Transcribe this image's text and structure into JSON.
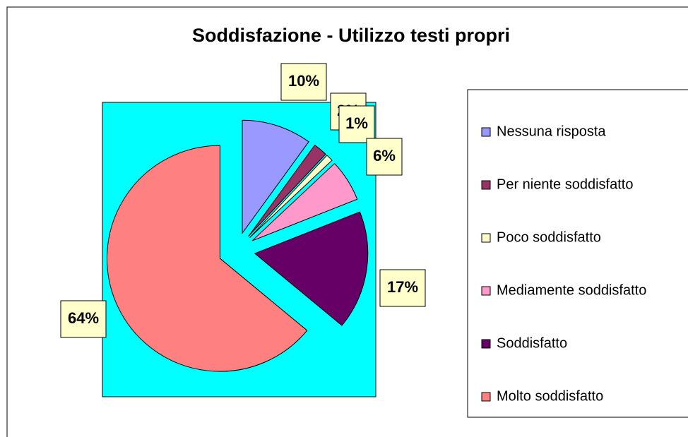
{
  "chart_data": {
    "type": "pie",
    "title": "Soddisfazione - Utilizzo testi propri",
    "categories": [
      "Nessuna risposta",
      "Per niente soddisfatto",
      "Poco soddisfatto",
      "Mediamente soddisfatto",
      "Soddisfatto",
      "Molto soddisfatto"
    ],
    "values": [
      10,
      2,
      1,
      6,
      17,
      64
    ],
    "value_labels": [
      "10%",
      "2%",
      "1%",
      "6%",
      "17%",
      "64%"
    ],
    "colors": [
      "#9999ff",
      "#993366",
      "#ffffcc",
      "#ff99cc",
      "#660066",
      "#ff8080"
    ],
    "legend": "right"
  }
}
